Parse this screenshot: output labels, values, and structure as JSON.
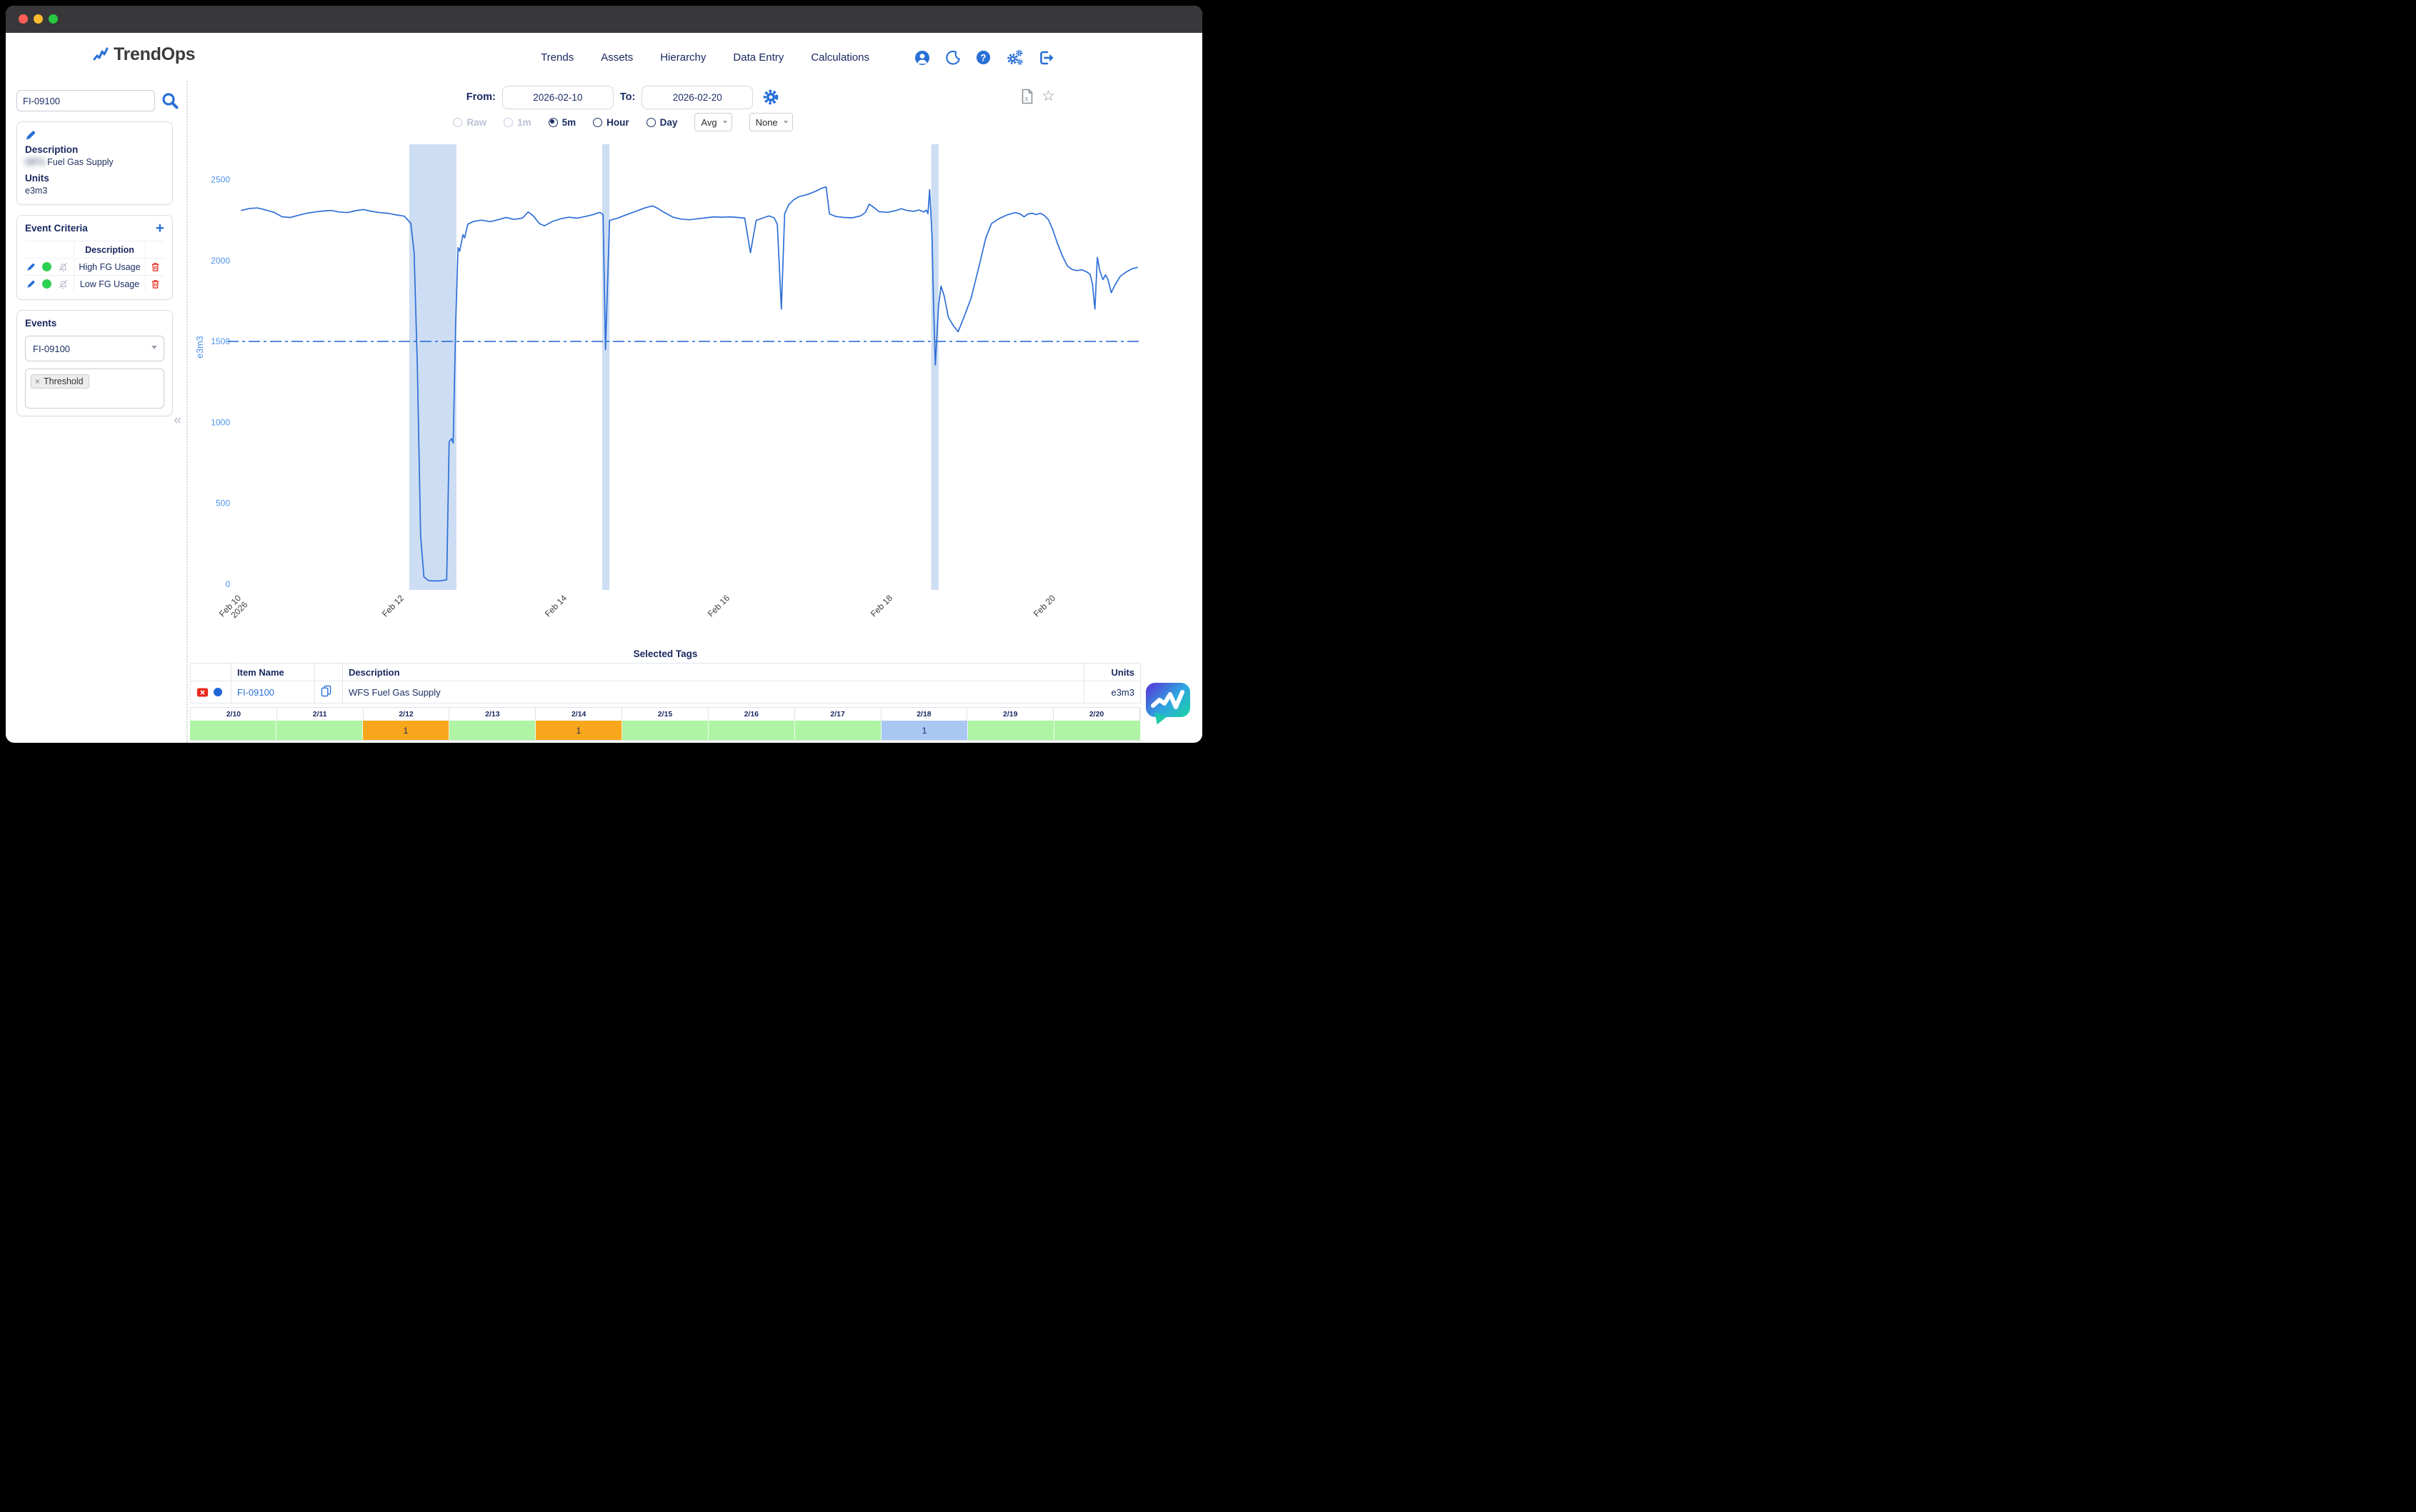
{
  "window": {
    "traffic_lights": [
      "#ff5f57",
      "#febc2e",
      "#28c840"
    ],
    "titlebar_color": "#38383a"
  },
  "header": {
    "brand": "TrendOps",
    "nav": [
      "Trends",
      "Assets",
      "Hierarchy",
      "Data Entry",
      "Calculations"
    ],
    "icon_names": [
      "user-icon",
      "moon-icon",
      "help-icon",
      "gears-icon",
      "signout-icon"
    ],
    "accent_color": "#2970d6"
  },
  "sidebar": {
    "search": {
      "value": "FI-09100",
      "placeholder": ""
    },
    "tag_info": {
      "description_label": "Description",
      "description_redacted": "WFS",
      "description_text": "Fuel Gas Supply",
      "units_label": "Units",
      "units_value": "e3m3"
    },
    "event_criteria": {
      "title": "Event Criteria",
      "add_label": "+",
      "description_header": "Description",
      "rows": [
        {
          "description": "High FG Usage",
          "active_color": "#2ed052"
        },
        {
          "description": "Low FG Usage",
          "active_color": "#2ed052"
        }
      ]
    },
    "events": {
      "title": "Events",
      "selected": "FI-09100",
      "filters": [
        {
          "label": "Threshold",
          "remove": "×"
        }
      ]
    },
    "collapse_glyph": "«"
  },
  "controls": {
    "from_label": "From:",
    "from_value": "2026-02-10",
    "to_label": "To:",
    "to_value": "2026-02-20",
    "resolutions": [
      {
        "label": "Raw",
        "state": "disabled"
      },
      {
        "label": "1m",
        "state": "disabled"
      },
      {
        "label": "5m",
        "state": "selected"
      },
      {
        "label": "Hour",
        "state": "normal"
      },
      {
        "label": "Day",
        "state": "normal"
      }
    ],
    "aggregation": "Avg",
    "overlay": "None"
  },
  "chart_data": {
    "type": "line",
    "title": "",
    "ylabel": "e3m3",
    "ylim": [
      0,
      2780
    ],
    "y_ticks": [
      0,
      500,
      1000,
      1500,
      2000,
      2500
    ],
    "x_ticks": [
      {
        "day": 0,
        "label": [
          "Feb 10",
          "2026"
        ]
      },
      {
        "day": 2,
        "label": "Feb 12"
      },
      {
        "day": 4,
        "label": "Feb 14"
      },
      {
        "day": 6,
        "label": "Feb 16"
      },
      {
        "day": 8,
        "label": "Feb 18"
      },
      {
        "day": 10,
        "label": "Feb 20"
      }
    ],
    "grid": false,
    "legend": "none",
    "threshold": {
      "value": 1500,
      "style": "dash-dot",
      "name": "Threshold"
    },
    "event_bands_days": [
      [
        2.06,
        2.64
      ],
      [
        4.43,
        4.52
      ],
      [
        8.47,
        8.56
      ]
    ],
    "colors": {
      "line": "#2e6fd8",
      "band": "#cdddf3",
      "axis_tick": "#4d92ec",
      "x_tick": "#3c3c3c"
    },
    "series": [
      {
        "name": "FI-09100",
        "units": "e3m3",
        "points": [
          [
            0,
            2310
          ],
          [
            0.1,
            2322
          ],
          [
            0.2,
            2325
          ],
          [
            0.3,
            2312
          ],
          [
            0.4,
            2298
          ],
          [
            0.5,
            2270
          ],
          [
            0.6,
            2266
          ],
          [
            0.7,
            2280
          ],
          [
            0.8,
            2292
          ],
          [
            0.9,
            2300
          ],
          [
            1.0,
            2306
          ],
          [
            1.1,
            2310
          ],
          [
            1.2,
            2300
          ],
          [
            1.3,
            2296
          ],
          [
            1.4,
            2308
          ],
          [
            1.5,
            2315
          ],
          [
            1.6,
            2304
          ],
          [
            1.7,
            2296
          ],
          [
            1.8,
            2292
          ],
          [
            1.9,
            2282
          ],
          [
            2.0,
            2274
          ],
          [
            2.08,
            2230
          ],
          [
            2.12,
            2050
          ],
          [
            2.16,
            1350
          ],
          [
            2.2,
            300
          ],
          [
            2.24,
            45
          ],
          [
            2.3,
            22
          ],
          [
            2.38,
            20
          ],
          [
            2.46,
            22
          ],
          [
            2.52,
            28
          ],
          [
            2.55,
            880
          ],
          [
            2.58,
            900
          ],
          [
            2.6,
            872
          ],
          [
            2.63,
            1600
          ],
          [
            2.66,
            2080
          ],
          [
            2.68,
            2058
          ],
          [
            2.72,
            2160
          ],
          [
            2.74,
            2140
          ],
          [
            2.78,
            2225
          ],
          [
            2.85,
            2242
          ],
          [
            2.95,
            2250
          ],
          [
            3.05,
            2240
          ],
          [
            3.15,
            2252
          ],
          [
            3.25,
            2266
          ],
          [
            3.35,
            2254
          ],
          [
            3.45,
            2262
          ],
          [
            3.52,
            2300
          ],
          [
            3.58,
            2278
          ],
          [
            3.66,
            2228
          ],
          [
            3.72,
            2215
          ],
          [
            3.82,
            2242
          ],
          [
            3.92,
            2258
          ],
          [
            4.02,
            2268
          ],
          [
            4.12,
            2262
          ],
          [
            4.22,
            2272
          ],
          [
            4.32,
            2284
          ],
          [
            4.4,
            2298
          ],
          [
            4.44,
            2285
          ],
          [
            4.47,
            1450
          ],
          [
            4.52,
            2248
          ],
          [
            4.62,
            2262
          ],
          [
            4.72,
            2282
          ],
          [
            4.82,
            2300
          ],
          [
            4.95,
            2325
          ],
          [
            5.05,
            2338
          ],
          [
            5.12,
            2320
          ],
          [
            5.2,
            2295
          ],
          [
            5.3,
            2268
          ],
          [
            5.4,
            2256
          ],
          [
            5.5,
            2252
          ],
          [
            5.6,
            2258
          ],
          [
            5.7,
            2264
          ],
          [
            5.8,
            2270
          ],
          [
            5.9,
            2268
          ],
          [
            6.0,
            2270
          ],
          [
            6.1,
            2266
          ],
          [
            6.18,
            2262
          ],
          [
            6.25,
            2048
          ],
          [
            6.32,
            2248
          ],
          [
            6.42,
            2266
          ],
          [
            6.48,
            2276
          ],
          [
            6.54,
            2264
          ],
          [
            6.58,
            2225
          ],
          [
            6.63,
            1700
          ],
          [
            6.67,
            2290
          ],
          [
            6.72,
            2345
          ],
          [
            6.78,
            2375
          ],
          [
            6.85,
            2395
          ],
          [
            6.95,
            2408
          ],
          [
            7.05,
            2428
          ],
          [
            7.12,
            2446
          ],
          [
            7.18,
            2455
          ],
          [
            7.22,
            2288
          ],
          [
            7.3,
            2272
          ],
          [
            7.4,
            2266
          ],
          [
            7.5,
            2264
          ],
          [
            7.6,
            2276
          ],
          [
            7.66,
            2296
          ],
          [
            7.71,
            2348
          ],
          [
            7.76,
            2330
          ],
          [
            7.83,
            2302
          ],
          [
            7.93,
            2298
          ],
          [
            8.03,
            2308
          ],
          [
            8.1,
            2320
          ],
          [
            8.17,
            2310
          ],
          [
            8.25,
            2304
          ],
          [
            8.32,
            2312
          ],
          [
            8.38,
            2300
          ],
          [
            8.41,
            2312
          ],
          [
            8.43,
            2290
          ],
          [
            8.45,
            2438
          ],
          [
            8.48,
            2150
          ],
          [
            8.5,
            1700
          ],
          [
            8.52,
            1355
          ],
          [
            8.56,
            1720
          ],
          [
            8.59,
            1842
          ],
          [
            8.63,
            1780
          ],
          [
            8.68,
            1650
          ],
          [
            8.74,
            1598
          ],
          [
            8.8,
            1560
          ],
          [
            8.87,
            1648
          ],
          [
            8.96,
            1768
          ],
          [
            9.05,
            1950
          ],
          [
            9.14,
            2140
          ],
          [
            9.21,
            2228
          ],
          [
            9.3,
            2258
          ],
          [
            9.4,
            2282
          ],
          [
            9.5,
            2296
          ],
          [
            9.56,
            2288
          ],
          [
            9.61,
            2270
          ],
          [
            9.66,
            2288
          ],
          [
            9.71,
            2292
          ],
          [
            9.76,
            2284
          ],
          [
            9.81,
            2292
          ],
          [
            9.86,
            2278
          ],
          [
            9.91,
            2252
          ],
          [
            9.96,
            2195
          ],
          [
            10.02,
            2105
          ],
          [
            10.08,
            2030
          ],
          [
            10.14,
            1968
          ],
          [
            10.2,
            1945
          ],
          [
            10.26,
            1938
          ],
          [
            10.32,
            1942
          ],
          [
            10.38,
            1930
          ],
          [
            10.42,
            1915
          ],
          [
            10.45,
            1855
          ],
          [
            10.48,
            1700
          ],
          [
            10.51,
            2020
          ],
          [
            10.54,
            1935
          ],
          [
            10.58,
            1882
          ],
          [
            10.61,
            1912
          ],
          [
            10.64,
            1882
          ],
          [
            10.68,
            1802
          ],
          [
            10.73,
            1852
          ],
          [
            10.79,
            1902
          ],
          [
            10.86,
            1928
          ],
          [
            10.93,
            1948
          ],
          [
            11.0,
            1958
          ]
        ]
      }
    ]
  },
  "selected_tags": {
    "title": "Selected Tags",
    "headers": {
      "item": "Item Name",
      "description": "Description",
      "units": "Units"
    },
    "rows": [
      {
        "item": "FI-09100",
        "description": "WFS Fuel Gas Supply",
        "units": "e3m3",
        "series_color": "#2064d8"
      }
    ]
  },
  "day_strip": {
    "colors": {
      "green": "#aef4a4",
      "orange": "#f8a71c",
      "blue": "#a9c7f2"
    },
    "columns": [
      {
        "date": "2/10",
        "value": "",
        "color": "green"
      },
      {
        "date": "2/11",
        "value": "",
        "color": "green"
      },
      {
        "date": "2/12",
        "value": "1",
        "color": "orange"
      },
      {
        "date": "2/13",
        "value": "",
        "color": "green"
      },
      {
        "date": "2/14",
        "value": "1",
        "color": "orange"
      },
      {
        "date": "2/15",
        "value": "",
        "color": "green"
      },
      {
        "date": "2/16",
        "value": "",
        "color": "green"
      },
      {
        "date": "2/17",
        "value": "",
        "color": "green"
      },
      {
        "date": "2/18",
        "value": "1",
        "color": "blue"
      },
      {
        "date": "2/19",
        "value": "",
        "color": "green"
      },
      {
        "date": "2/20",
        "value": "",
        "color": "green"
      }
    ]
  }
}
